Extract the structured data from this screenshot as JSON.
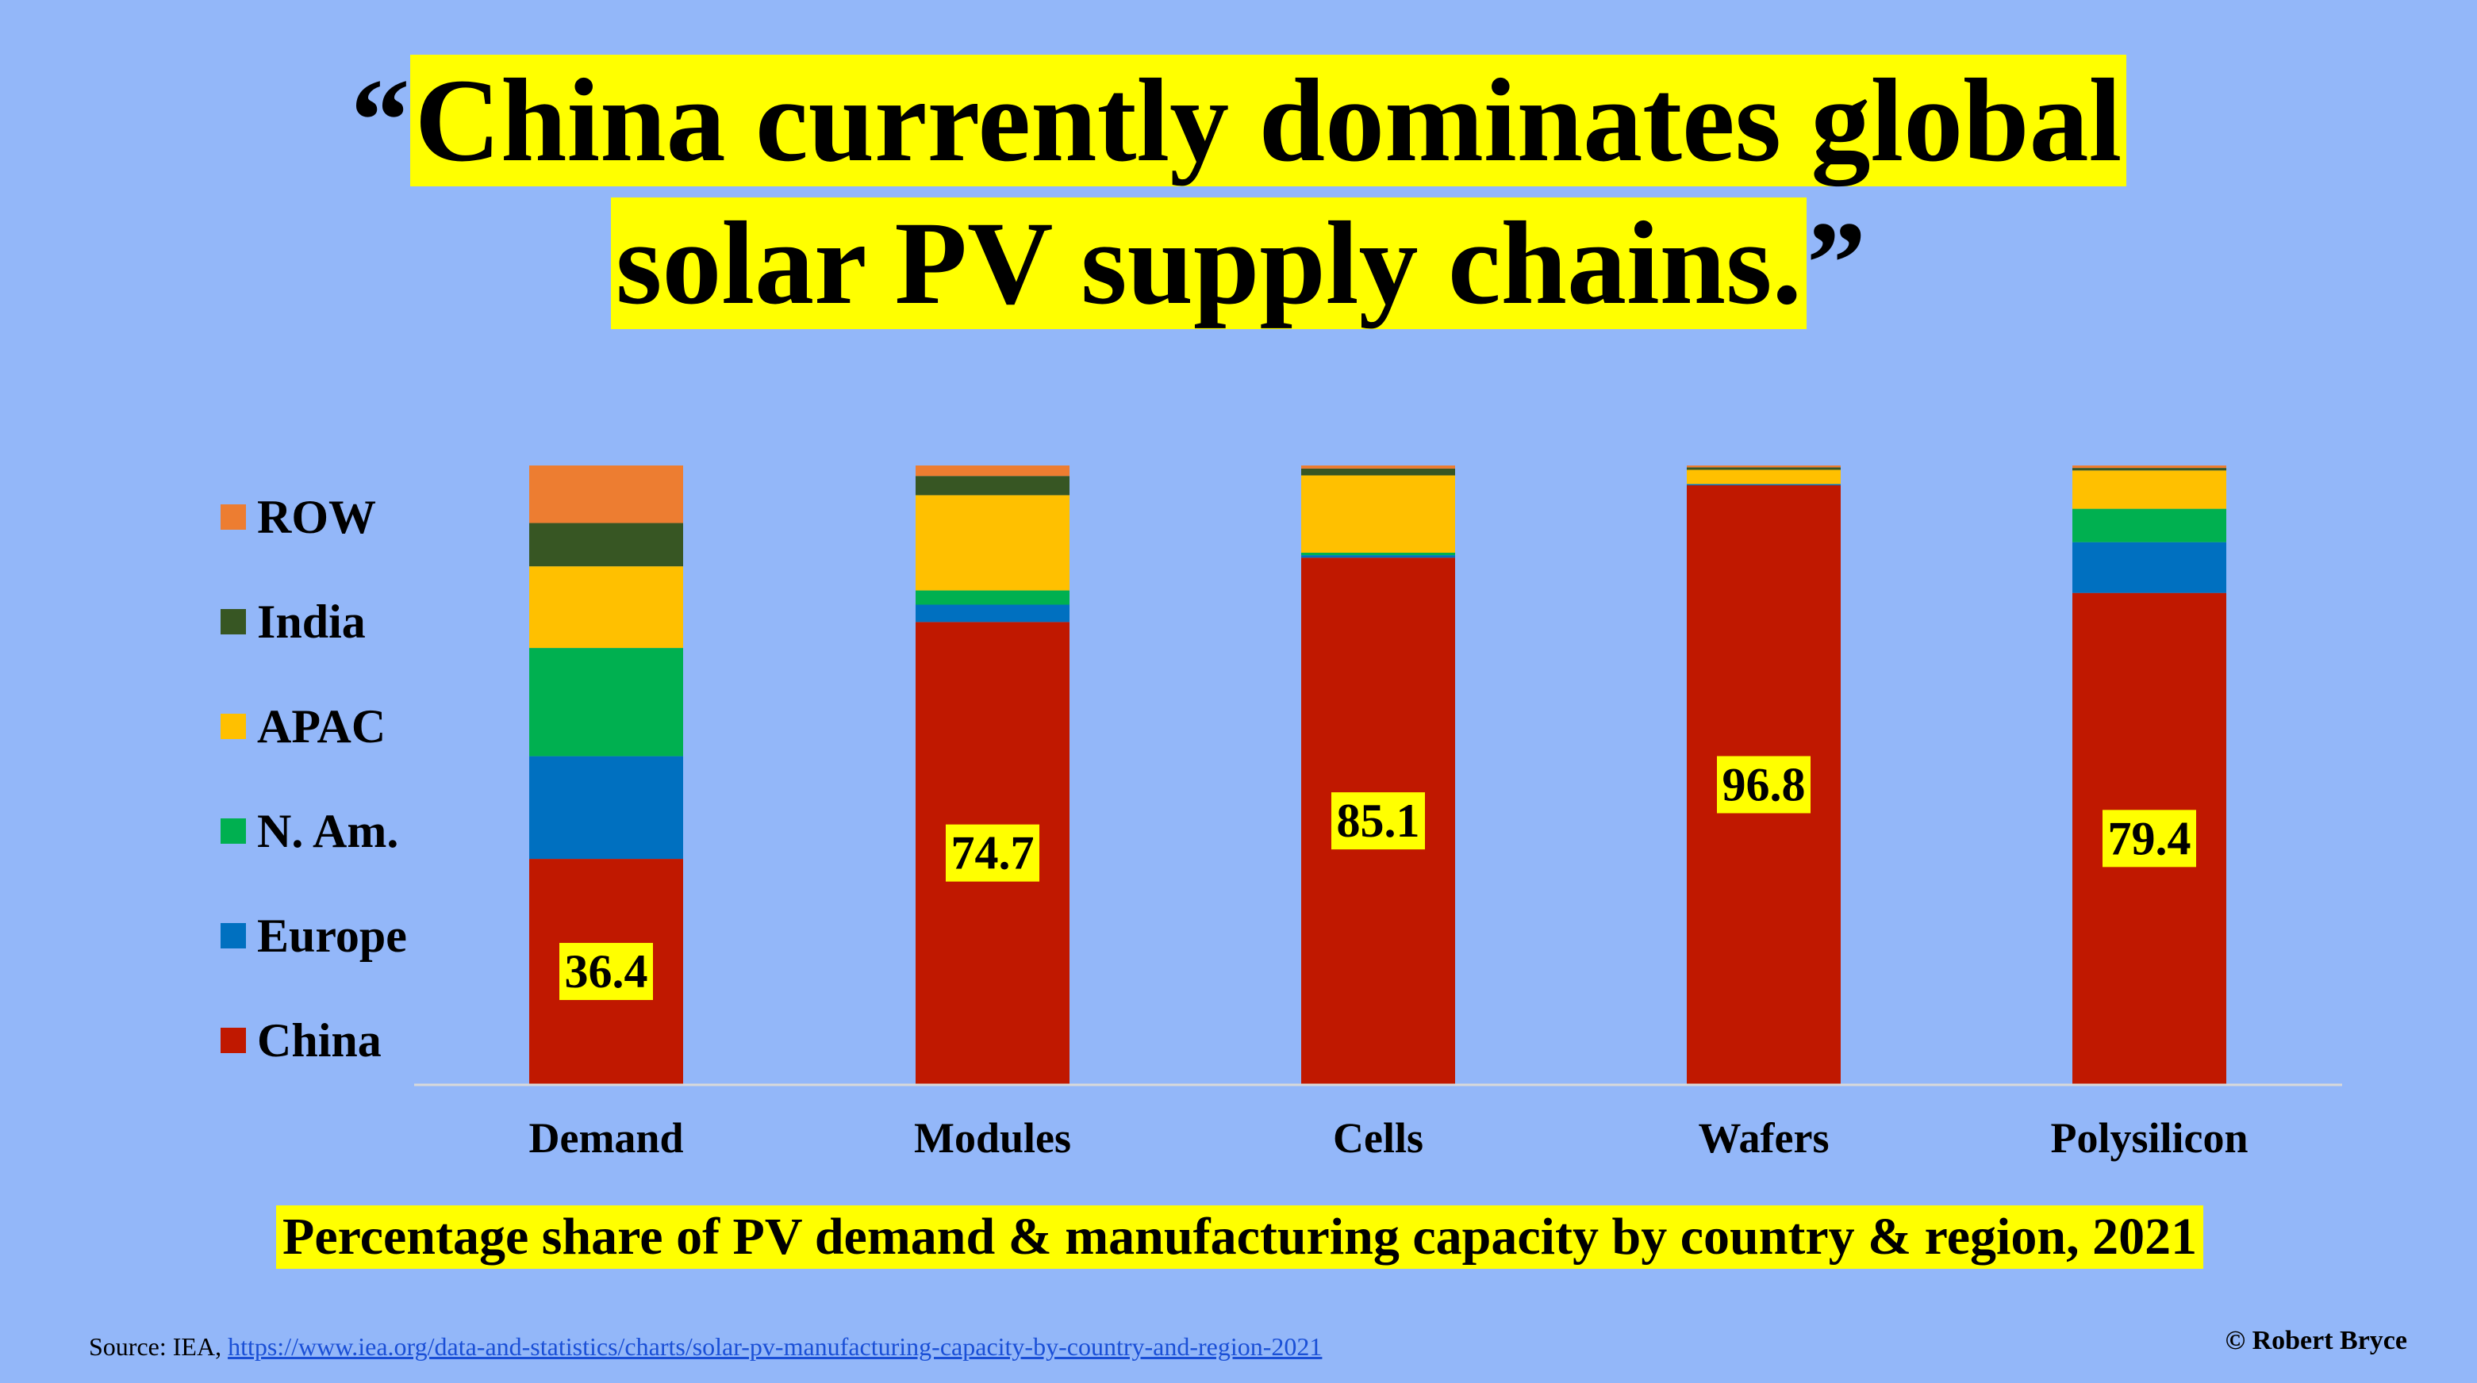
{
  "headline": {
    "open_quote": "“",
    "line1": "China currently dominates global",
    "line2": "solar PV supply chains.",
    "close_quote": "”"
  },
  "chart_data": {
    "type": "bar",
    "stacked": true,
    "categories": [
      "Demand",
      "Modules",
      "Cells",
      "Wafers",
      "Polysilicon"
    ],
    "series": [
      {
        "name": "China",
        "color": "#c01800",
        "values": [
          36.4,
          74.7,
          85.1,
          96.8,
          79.4
        ]
      },
      {
        "name": "Europe",
        "color": "#0070c0",
        "values": [
          16.6,
          2.8,
          0.4,
          0.2,
          8.2
        ]
      },
      {
        "name": "N. Am.",
        "color": "#00b050",
        "values": [
          17.5,
          2.3,
          0.4,
          0.0,
          5.4
        ]
      },
      {
        "name": "APAC",
        "color": "#ffc000",
        "values": [
          13.2,
          15.4,
          12.5,
          2.3,
          6.2
        ]
      },
      {
        "name": "India",
        "color": "#375623",
        "values": [
          7.0,
          3.1,
          1.1,
          0.4,
          0.4
        ]
      },
      {
        "name": "ROW",
        "color": "#ed7d31",
        "values": [
          9.3,
          1.7,
          0.5,
          0.3,
          0.4
        ]
      }
    ],
    "data_labels": {
      "series": "China",
      "values": [
        "36.4",
        "74.7",
        "85.1",
        "96.8",
        "79.4"
      ]
    },
    "legend_order": [
      "ROW",
      "India",
      "APAC",
      "N. Am.",
      "Europe",
      "China"
    ],
    "legend_position": "left",
    "ylim": [
      0,
      100
    ],
    "grid": false,
    "title": "",
    "xlabel": "",
    "ylabel": ""
  },
  "caption": "Percentage share of PV demand & manufacturing capacity by country & region, 2021",
  "source": {
    "prefix": "Source: IEA, ",
    "link_text": "https://www.iea.org/data-and-statistics/charts/solar-pv-manufacturing-capacity-by-country-and-region-2021"
  },
  "copyright": "© Robert Bryce",
  "colors": {
    "background": "#93b7f9",
    "highlight": "#ffff00",
    "axis": "#d9d9d9"
  }
}
